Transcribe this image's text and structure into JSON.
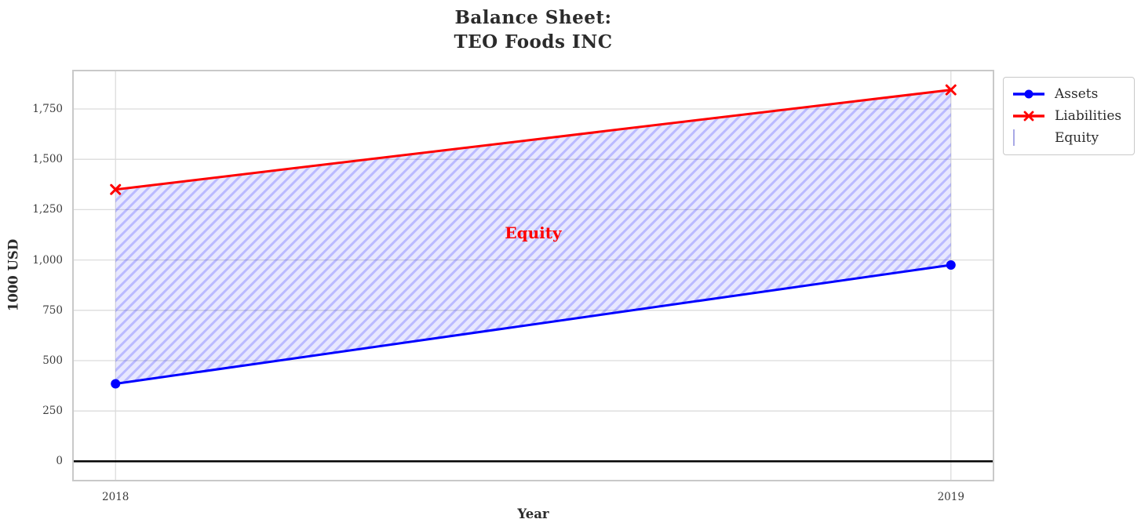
{
  "title": {
    "line1": "Balance Sheet:",
    "line2": "TEO Foods INC"
  },
  "colors": {
    "assets": "#0000ff",
    "liabilities": "#ff0000",
    "annotation": "#ff0000",
    "grid": "#dcdcdc",
    "spine": "#c9c9c9",
    "zero_line": "#000000",
    "equity_fill_base": "rgba(0,0,255,0.09)",
    "equity_hatch_line": "rgba(0,0,255,0.20)",
    "text": "#2b2b2b",
    "tick_text": "#3c3c3c"
  },
  "chart_data": {
    "type": "line",
    "title": "Balance Sheet:\nTEO Foods INC",
    "xlabel": "Year",
    "ylabel": "1000 USD",
    "x": [
      2018,
      2019
    ],
    "series": [
      {
        "name": "Assets",
        "values": [
          385,
          975
        ],
        "color": "#0000ff",
        "marker": "circle"
      },
      {
        "name": "Liabilities",
        "values": [
          1350,
          1845
        ],
        "color": "#ff0000",
        "marker": "x"
      }
    ],
    "area": {
      "name": "Equity",
      "between": [
        "Assets",
        "Liabilities"
      ]
    },
    "annotation": {
      "text": "Equity",
      "x": 2018.5,
      "y": 1135
    },
    "zero_line": 0,
    "xlim": [
      2017.95,
      2019.05
    ],
    "ylim": [
      -92,
      1937
    ],
    "x_ticks": [
      2018,
      2019
    ],
    "x_tick_labels": [
      "2018",
      "2019"
    ],
    "y_ticks": [
      0,
      250,
      500,
      750,
      1000,
      1250,
      1500,
      1750
    ],
    "y_tick_labels": [
      "0",
      "250",
      "500",
      "750",
      "1,000",
      "1,250",
      "1,500",
      "1,750"
    ],
    "grid": true,
    "legend_position": "upper-right-outside"
  },
  "legend": {
    "items": [
      {
        "label": "Assets",
        "swatch": "line-circle",
        "color": "#0000ff"
      },
      {
        "label": "Liabilities",
        "swatch": "line-x",
        "color": "#ff0000"
      },
      {
        "label": "Equity",
        "swatch": "hatch-patch",
        "color": "#a9a9e6"
      }
    ]
  }
}
